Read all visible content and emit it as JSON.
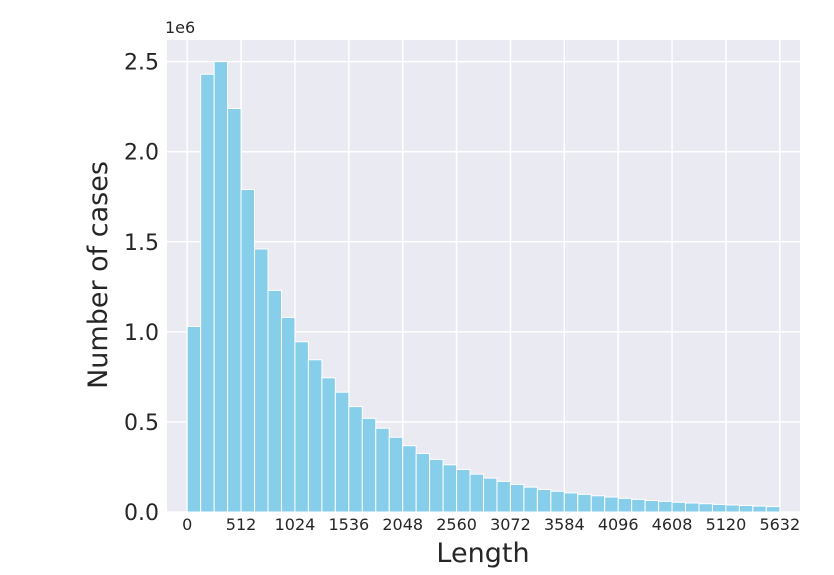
{
  "chart_data": {
    "type": "bar",
    "title": "",
    "xlabel": "Length",
    "ylabel": "Number of cases",
    "y_offset_label": "1e6",
    "y_scale": 1000000,
    "bin_width": 128,
    "bin_starts": [
      0,
      128,
      256,
      384,
      512,
      640,
      768,
      896,
      1024,
      1152,
      1280,
      1408,
      1536,
      1664,
      1792,
      1920,
      2048,
      2176,
      2304,
      2432,
      2560,
      2688,
      2816,
      2944,
      3072,
      3200,
      3328,
      3456,
      3584,
      3712,
      3840,
      3968,
      4096,
      4224,
      4352,
      4480,
      4608,
      4736,
      4864,
      4992,
      5120,
      5248,
      5376,
      5504
    ],
    "values": [
      1030000,
      2430000,
      2500000,
      2240000,
      1790000,
      1460000,
      1230000,
      1080000,
      945000,
      845000,
      745000,
      665000,
      585000,
      520000,
      465000,
      415000,
      368000,
      325000,
      292000,
      262000,
      236000,
      210000,
      188000,
      170000,
      153000,
      138000,
      125000,
      115000,
      106000,
      98000,
      90000,
      83000,
      76000,
      70000,
      64000,
      59000,
      54000,
      50000,
      46000,
      42000,
      39000,
      36000,
      33000,
      30000
    ],
    "xlim": [
      -192,
      5824
    ],
    "ylim": [
      0,
      2620000
    ],
    "x_ticks": [
      0,
      512,
      1024,
      1536,
      2048,
      2560,
      3072,
      3584,
      4096,
      4608,
      5120,
      5632
    ],
    "x_tick_labels": [
      "0",
      "512",
      "1024",
      "1536",
      "2048",
      "2560",
      "3072",
      "3584",
      "4096",
      "4608",
      "5120",
      "5632"
    ],
    "y_ticks": [
      0,
      500000,
      1000000,
      1500000,
      2000000,
      2500000
    ],
    "y_tick_labels": [
      "0.0",
      "0.5",
      "1.0",
      "1.5",
      "2.0",
      "2.5"
    ],
    "grid": true,
    "colors": {
      "bar": "#87ceeb",
      "plot_background": "#eaeaf2",
      "grid": "#ffffff",
      "text": "#262626"
    }
  }
}
